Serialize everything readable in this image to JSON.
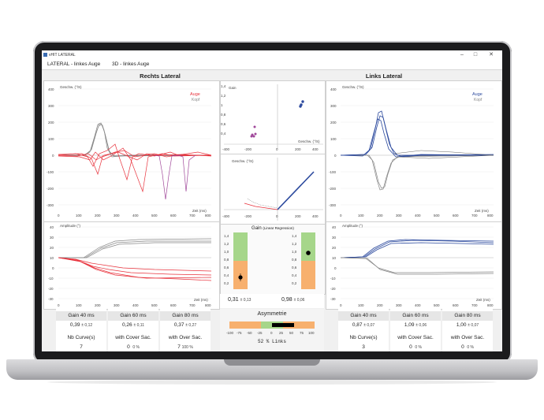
{
  "window": {
    "title": "vHIT LATERAL",
    "minimize": "–",
    "maximize": "□",
    "close": "✕"
  },
  "menu": {
    "item1": "LATERAL - linkes Auge",
    "item2": "3D - linkes Auge"
  },
  "left_panel": {
    "title": "Rechts Lateral",
    "velocity_label": "Geschw. (°/S)",
    "amplitude_label": "Amplitude (°)",
    "time_label": "Zeit (ms)",
    "legend_eye": "Auge",
    "legend_head": "Kopf"
  },
  "right_panel": {
    "title": "Links Lateral",
    "velocity_label": "Geschw. (°/S)",
    "amplitude_label": "Amplitude (°)",
    "time_label": "Zeit (ms)",
    "legend_eye": "Auge",
    "legend_head": "Kopf"
  },
  "center": {
    "gain_axis": "Gain",
    "speed_axis": "Geschw. (°/S)",
    "regression_title": "Gain",
    "regression_sub": "(Linear Regression)",
    "left_gain": "0,31",
    "left_sd": "± 0,13",
    "right_gain": "0,98",
    "right_sd": "± 0,06",
    "asym_title": "Asymmetrie",
    "asym_value": "52 % Links",
    "asym_ticks": [
      "-100",
      "-75",
      "-50",
      "-25",
      "0",
      "25",
      "50",
      "75",
      "100"
    ],
    "gain_ticks": [
      "1,4",
      "1,2",
      "1,0",
      "0,8",
      "0,6",
      "0,4",
      "0,2"
    ]
  },
  "left_stats": {
    "gain40_label": "Gain 40 ms",
    "gain40": "0,39",
    "gain40_sd": "± 0,12",
    "gain60_label": "Gain 60 ms",
    "gain60": "0,26",
    "gain60_sd": "± 0,11",
    "gain80_label": "Gain 80 ms",
    "gain80": "0,37",
    "gain80_sd": "± 0,27",
    "nb_label": "Nb Curve(s)",
    "nb": "7",
    "cover_label": "with Cover Sac.",
    "cover": "0",
    "cover_pct": "0 %",
    "over_label": "with Over Sac.",
    "over": "7",
    "over_pct": "100 %"
  },
  "right_stats": {
    "gain40_label": "Gain 40 ms",
    "gain40": "0,87",
    "gain40_sd": "± 0,07",
    "gain60_label": "Gain 60 ms",
    "gain60": "1,09",
    "gain60_sd": "± 0,06",
    "gain80_label": "Gain 80 ms",
    "gain80": "1,00",
    "gain80_sd": "± 0,07",
    "nb_label": "Nb Curve(s)",
    "nb": "3",
    "cover_label": "with Cover Sac.",
    "cover": "0",
    "cover_pct": "0 %",
    "over_label": "with Over Sac.",
    "over": "0",
    "over_pct": "0 %"
  },
  "axes": {
    "velocity_ticks": [
      "400",
      "300",
      "200",
      "100",
      "0",
      "-100",
      "-200",
      "-300",
      "-400"
    ],
    "amplitude_ticks": [
      "40",
      "30",
      "20",
      "10",
      "0",
      "-10",
      "-20",
      "-30",
      "-40"
    ],
    "time_ticks": [
      "0",
      "100",
      "200",
      "300",
      "400",
      "500",
      "600",
      "700",
      "800"
    ],
    "center_x_ticks": [
      "-400",
      "-300",
      "-200",
      "-100",
      "0",
      "100",
      "200",
      "300",
      "400"
    ]
  },
  "colors": {
    "left_eye": "#e8323c",
    "left_head": "#888888",
    "right_eye": "#2c4a9e",
    "right_head": "#888888",
    "saccade": "#a0479a",
    "gain_ok": "#a6d68a",
    "gain_low": "#f7b06e"
  }
}
